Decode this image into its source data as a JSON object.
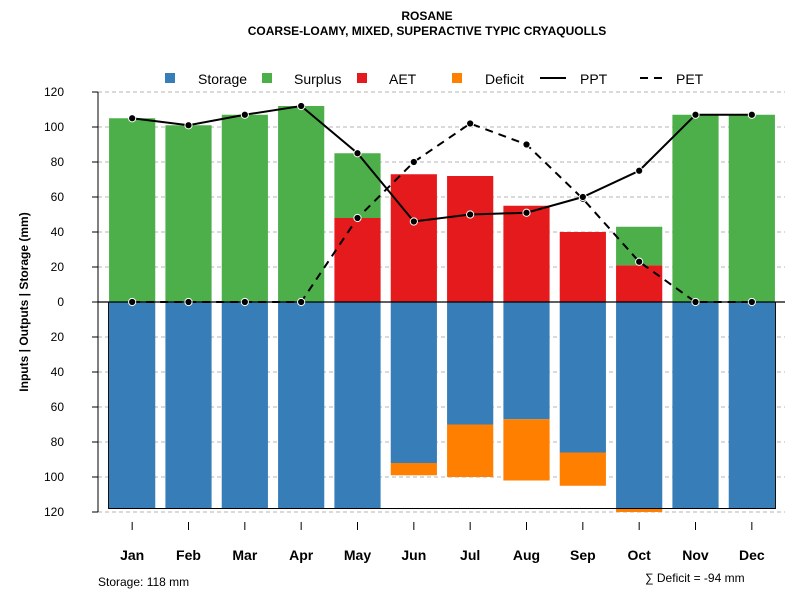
{
  "chart_data": {
    "type": "bar",
    "title": "ROSANE",
    "subtitle": "COARSE-LOAMY, MIXED, SUPERACTIVE TYPIC CRYAQUOLLS",
    "ylabel": "Inputs | Outputs | Storage    (mm)",
    "ylim": [
      -120,
      120
    ],
    "yticks": [
      120,
      100,
      80,
      60,
      40,
      20,
      0,
      -20,
      -40,
      -60,
      -80,
      -100,
      -120
    ],
    "ytick_labels": [
      "120",
      "100",
      "80",
      "60",
      "40",
      "20",
      "0",
      "20",
      "40",
      "60",
      "80",
      "100",
      "120"
    ],
    "categories": [
      "Jan",
      "Feb",
      "Mar",
      "Apr",
      "May",
      "Jun",
      "Jul",
      "Aug",
      "Sep",
      "Oct",
      "Nov",
      "Dec"
    ],
    "legend": [
      {
        "name": "Storage",
        "kind": "box",
        "color": "#377EB8"
      },
      {
        "name": "Surplus",
        "kind": "box",
        "color": "#4DAF4A"
      },
      {
        "name": "AET",
        "kind": "box",
        "color": "#E41A1C"
      },
      {
        "name": "Deficit",
        "kind": "box",
        "color": "#FF7F00"
      },
      {
        "name": "PPT",
        "kind": "line",
        "color": "#000000"
      },
      {
        "name": "PET",
        "kind": "dash",
        "color": "#000000"
      }
    ],
    "series": [
      {
        "name": "AET",
        "color": "#E41A1C",
        "values": [
          0,
          0,
          0,
          0,
          48,
          73,
          72,
          55,
          40,
          21,
          0,
          0
        ]
      },
      {
        "name": "Surplus",
        "color": "#4DAF4A",
        "values": [
          105,
          101,
          107,
          112,
          37,
          0,
          0,
          0,
          0,
          22,
          107,
          107
        ]
      },
      {
        "name": "Storage",
        "color": "#377EB8",
        "values": [
          118,
          118,
          118,
          118,
          118,
          92,
          70,
          67,
          86,
          118,
          118,
          118
        ]
      },
      {
        "name": "Deficit",
        "color": "#FF7F00",
        "values": [
          0,
          0,
          0,
          0,
          0,
          7,
          30,
          35,
          19,
          2,
          0,
          0
        ]
      },
      {
        "name": "PPT",
        "color": "#000000",
        "values": [
          105,
          101,
          107,
          112,
          85,
          46,
          50,
          51,
          60,
          75,
          107,
          107
        ]
      },
      {
        "name": "PET",
        "color": "#000000",
        "values": [
          0,
          0,
          0,
          0,
          48,
          80,
          102,
          90,
          59,
          23,
          0,
          0
        ]
      }
    ],
    "storage_capacity": 118,
    "storage_note": "Storage: 118 mm",
    "deficit_note": "∑ Deficit = -94 mm"
  }
}
